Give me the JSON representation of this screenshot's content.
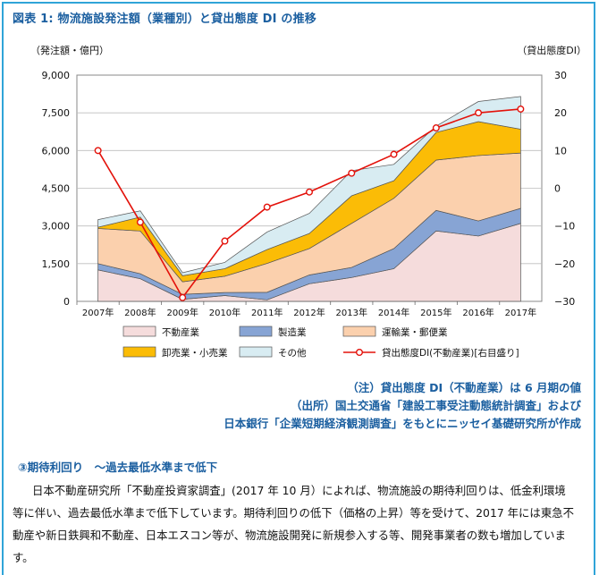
{
  "figure": {
    "title": "図表 1: 物流施設発注額（業種別）と貸出態度 DI の推移",
    "left_axis_unit": "（発注額・億円）",
    "right_axis_unit": "（貸出態度DI）"
  },
  "chart_data": {
    "type": "area",
    "stacked": true,
    "categories": [
      "2007年",
      "2008年",
      "2009年",
      "2010年",
      "2011年",
      "2012年",
      "2013年",
      "2014年",
      "2015年",
      "2016年",
      "2017年"
    ],
    "y_left": {
      "ticks": [
        "0",
        "1,500",
        "3,000",
        "4,500",
        "6,000",
        "7,500",
        "9,000"
      ],
      "ylim": [
        0,
        9000
      ]
    },
    "y_right": {
      "ticks": [
        "−30",
        "−20",
        "−10",
        "0",
        "10",
        "20",
        "30"
      ],
      "ylim": [
        -30,
        30
      ]
    },
    "grid": true,
    "legend_position": "bottom",
    "series": [
      {
        "name": "不動産業",
        "color": "#f5dcdc",
        "values": [
          1250,
          900,
          80,
          230,
          60,
          700,
          950,
          1300,
          2800,
          2600,
          3100
        ]
      },
      {
        "name": "製造業",
        "color": "#87a4d4",
        "values": [
          250,
          200,
          200,
          120,
          300,
          350,
          400,
          800,
          820,
          600,
          600
        ]
      },
      {
        "name": "運輸業・郵便業",
        "color": "#fbd0ad",
        "values": [
          1400,
          1700,
          500,
          650,
          1150,
          1050,
          1750,
          2000,
          2000,
          2600,
          2200
        ]
      },
      {
        "name": "卸売業・小売業",
        "color": "#fbbc06",
        "values": [
          50,
          550,
          240,
          300,
          550,
          600,
          1100,
          700,
          1100,
          1350,
          950
        ]
      },
      {
        "name": "その他",
        "color": "#d8ecf2",
        "values": [
          300,
          250,
          120,
          250,
          700,
          800,
          1000,
          650,
          250,
          800,
          1300
        ]
      }
    ],
    "line_series": {
      "name": "貸出態度DI(不動産業)[右目盛り]",
      "color": "#e3120b",
      "axis": "right",
      "values": [
        10,
        -9,
        -29,
        -14,
        -5,
        -1,
        4,
        9,
        16,
        20,
        21
      ]
    }
  },
  "notes": {
    "line1": "（注）貸出態度 DI（不動産業）は 6 月期の値",
    "line2": "（出所）国土交通省「建設工事受注動態統計調査」および",
    "line3": "日本銀行「企業短期経済観測調査」をもとにニッセイ基礎研究所が作成"
  },
  "section": {
    "heading": "③期待利回り　～過去最低水準まで低下",
    "body": "日本不動産研究所「不動産投資家調査」(2017 年 10 月）によれば、物流施設の期待利回りは、低金利環境等に伴い、過去最低水準まで低下しています。期待利回りの低下（価格の上昇）等を受けて、2017 年には東急不動産や新日鉄興和不動産、日本エスコン等が、物流施設開発に新規参入する等、開発事業者の数も増加しています。"
  }
}
